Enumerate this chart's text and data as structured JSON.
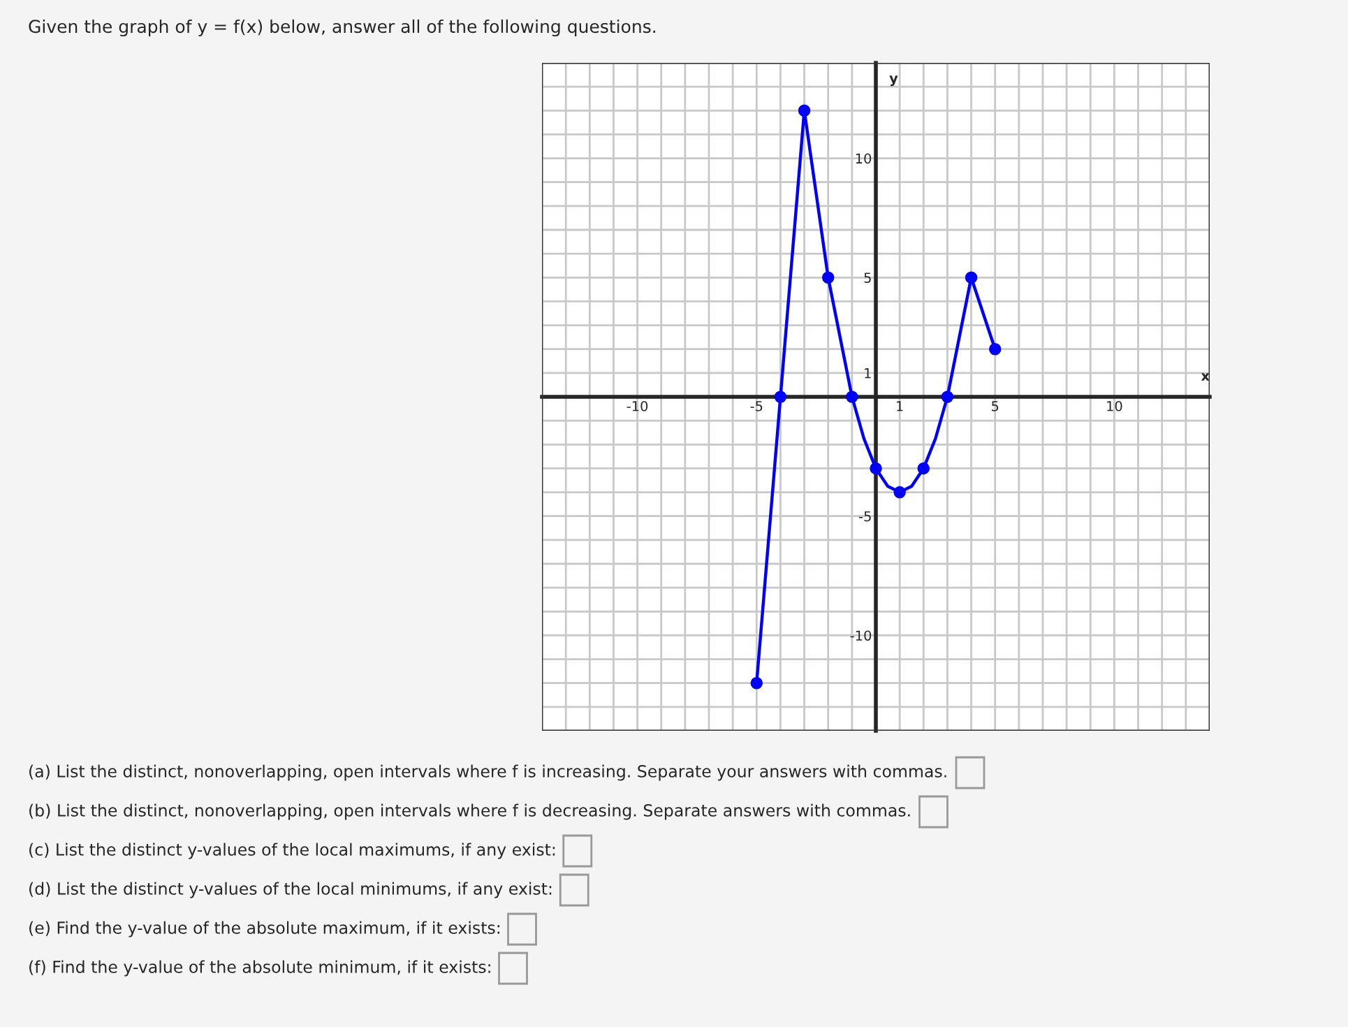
{
  "chart_data": {
    "type": "line",
    "title": "Given the graph of y = f(x) below, answer all of the following questions.",
    "xlabel": "x",
    "ylabel": "y",
    "series": [
      {
        "color": "#0000ff",
        "marker": "none",
        "x": [
          -5,
          -4,
          -3,
          -2,
          -1,
          -0.5,
          0,
          0.5,
          1,
          1.5,
          2,
          2.5,
          3,
          4,
          5
        ],
        "values": [
          -12,
          0,
          12,
          5,
          0,
          -1.75,
          -3,
          -3.75,
          -4,
          -3.75,
          -3,
          -1.75,
          0,
          5,
          2
        ]
      },
      {
        "type": "scatter",
        "color": "#0000ff",
        "marker": "circle",
        "x": [
          -5,
          -4,
          -3,
          -2,
          -1,
          0,
          1,
          2,
          3,
          4,
          5
        ],
        "values": [
          -12,
          0,
          12,
          5,
          0,
          -3,
          -4,
          -3,
          0,
          5,
          2
        ]
      }
    ],
    "xlim": [
      -14,
      14
    ],
    "ylim": [
      -14,
      14
    ],
    "xticks": [
      {
        "value": -14,
        "label": null
      },
      {
        "value": -13,
        "label": null
      },
      {
        "value": -12,
        "label": null
      },
      {
        "value": -11,
        "label": null
      },
      -10,
      {
        "value": -9,
        "label": null
      },
      {
        "value": -8,
        "label": null
      },
      {
        "value": -7,
        "label": null
      },
      {
        "value": -6,
        "label": null
      },
      -5,
      {
        "value": -4,
        "label": null
      },
      {
        "value": -3,
        "label": null
      },
      {
        "value": -2,
        "label": null
      },
      {
        "value": -1,
        "label": null
      },
      {
        "value": 0,
        "label": null
      },
      1,
      {
        "value": 2,
        "label": null
      },
      {
        "value": 3,
        "label": null
      },
      {
        "value": 4,
        "label": null
      },
      5,
      {
        "value": 6,
        "label": null
      },
      {
        "value": 7,
        "label": null
      },
      {
        "value": 8,
        "label": null
      },
      {
        "value": 9,
        "label": null
      },
      10,
      {
        "value": 11,
        "label": null
      },
      {
        "value": 12,
        "label": null
      },
      {
        "value": 13,
        "label": null
      },
      {
        "value": 14,
        "label": null
      }
    ],
    "yticks": [
      {
        "value": -14,
        "label": null
      },
      {
        "value": -13,
        "label": null
      },
      {
        "value": -12,
        "label": null
      },
      {
        "value": -11,
        "label": null
      },
      -10,
      {
        "value": -9,
        "label": null
      },
      {
        "value": -8,
        "label": null
      },
      {
        "value": -7,
        "label": null
      },
      {
        "value": -6,
        "label": null
      },
      -5,
      {
        "value": -4,
        "label": null
      },
      {
        "value": -3,
        "label": null
      },
      {
        "value": -2,
        "label": null
      },
      {
        "value": -1,
        "label": null
      },
      {
        "value": 0,
        "label": null
      },
      1,
      {
        "value": 2,
        "label": null
      },
      {
        "value": 3,
        "label": null
      },
      {
        "value": 4,
        "label": null
      },
      5,
      {
        "value": 6,
        "label": null
      },
      {
        "value": 7,
        "label": null
      },
      {
        "value": 8,
        "label": null
      },
      {
        "value": 9,
        "label": null
      },
      10,
      {
        "value": 11,
        "label": null
      },
      {
        "value": 12,
        "label": null
      },
      {
        "value": 13,
        "label": null
      },
      {
        "value": 14,
        "label": null
      }
    ],
    "grid": true,
    "annotations": [
      "(a) List the distinct, nonoverlapping, open intervals where f is increasing. Separate your answers with commas.",
      "(b) List the distinct, nonoverlapping, open intervals where f is decreasing. Separate answers with commas.",
      "(c) List the distinct y-values of the local maximums, if any exist:",
      "(d) List the distinct y-values of the local minimums, if any exist:",
      "(e) Find the y-value of the absolute maximum, if it exists:",
      "(f) Find the y-value of the absolute minimum, if it exists:"
    ]
  }
}
